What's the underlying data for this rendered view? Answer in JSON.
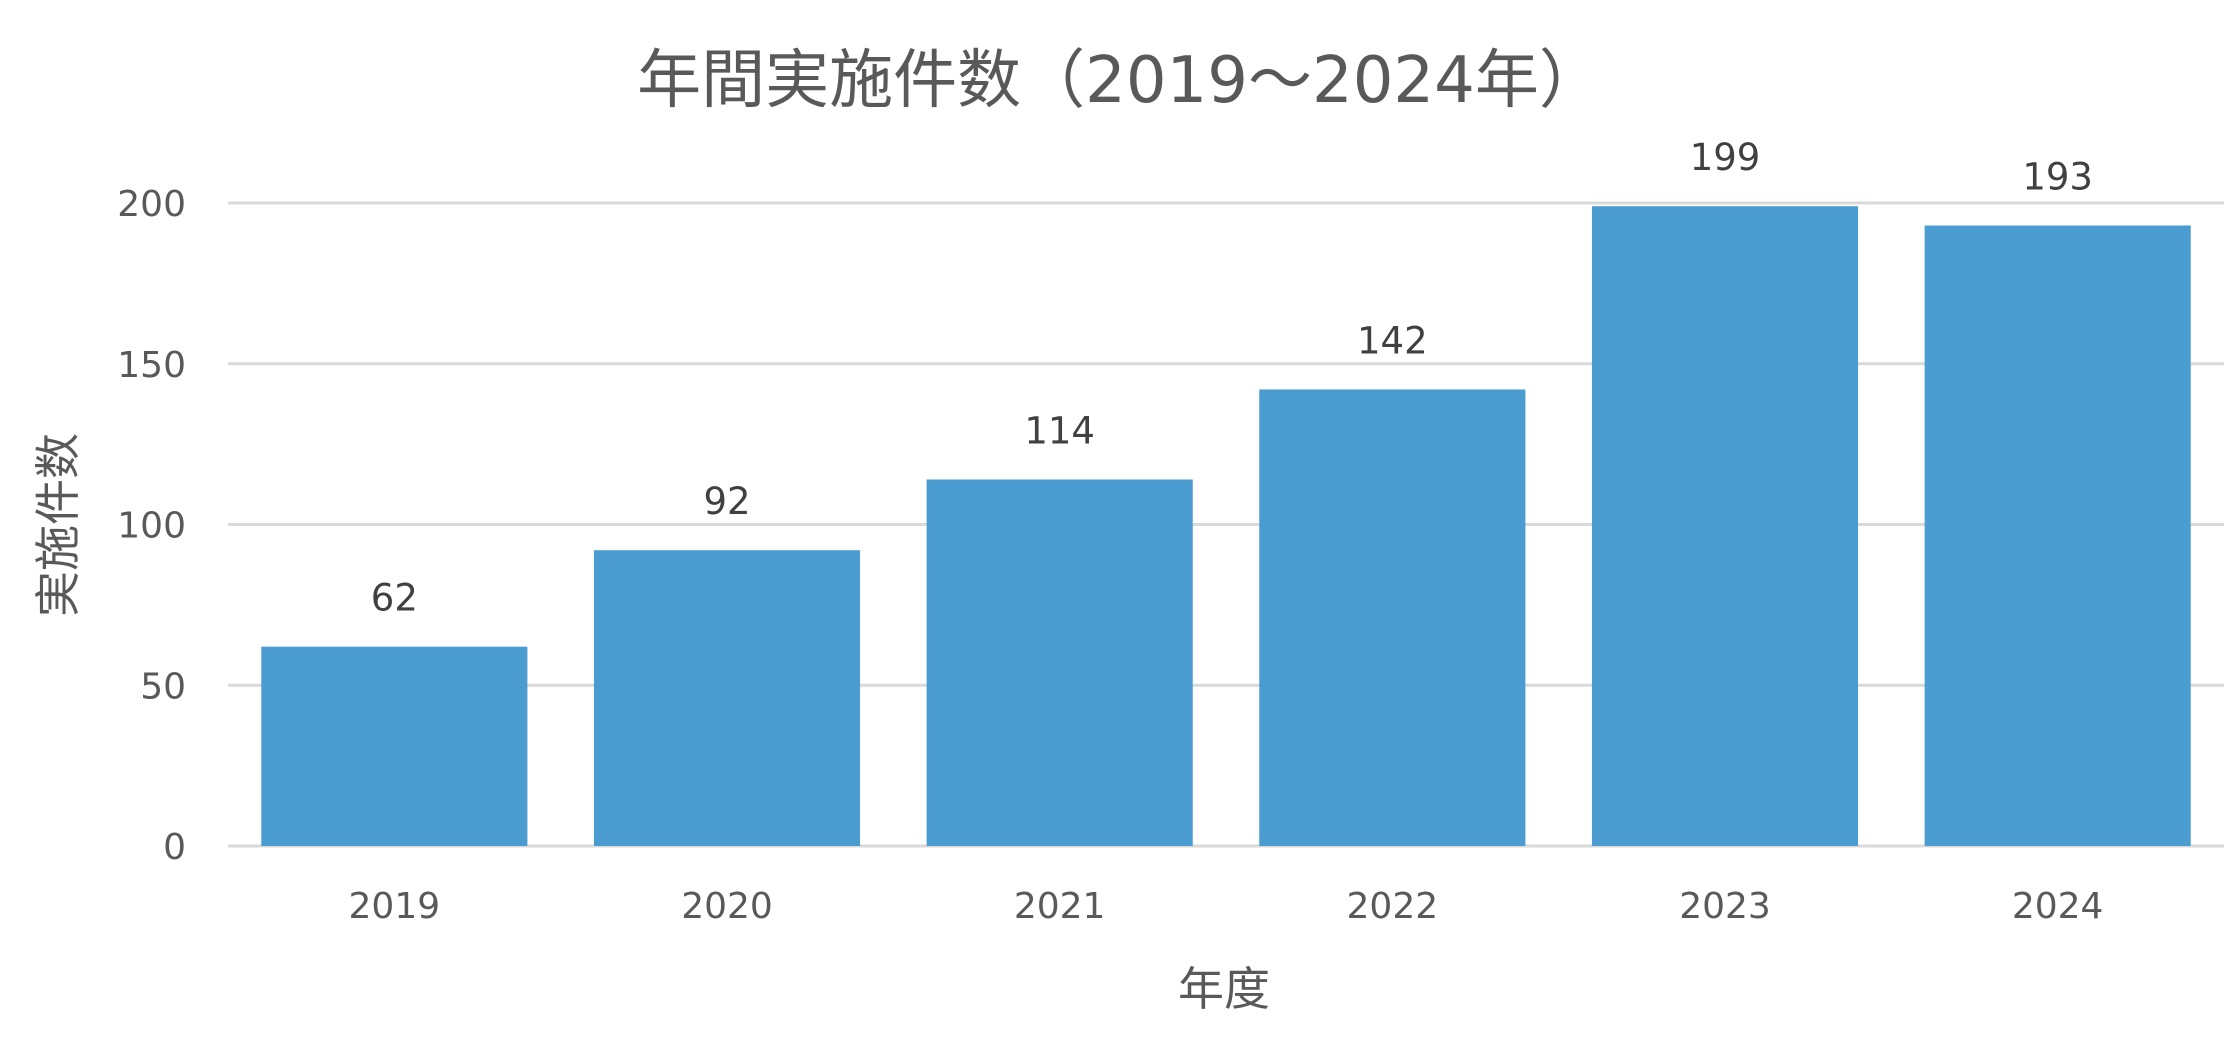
{
  "chart_data": {
    "type": "bar",
    "title": "年間実施件数（2019〜2024年）",
    "xlabel": "年度",
    "ylabel": "実施件数",
    "categories": [
      "2019",
      "2020",
      "2021",
      "2022",
      "2023",
      "2024"
    ],
    "values": [
      62,
      92,
      114,
      142,
      199,
      193
    ],
    "data_labels": [
      "62",
      "92",
      "114",
      "142",
      "199",
      "193"
    ],
    "y_ticks": [
      "0",
      "50",
      "100",
      "150",
      "200"
    ],
    "ylim": [
      0,
      200
    ],
    "grid": true,
    "legend": "none",
    "colors": {
      "bar": "#4a9cd1",
      "grid": "#d9d9d9",
      "text": "#595959",
      "data_label": "#404040"
    }
  }
}
